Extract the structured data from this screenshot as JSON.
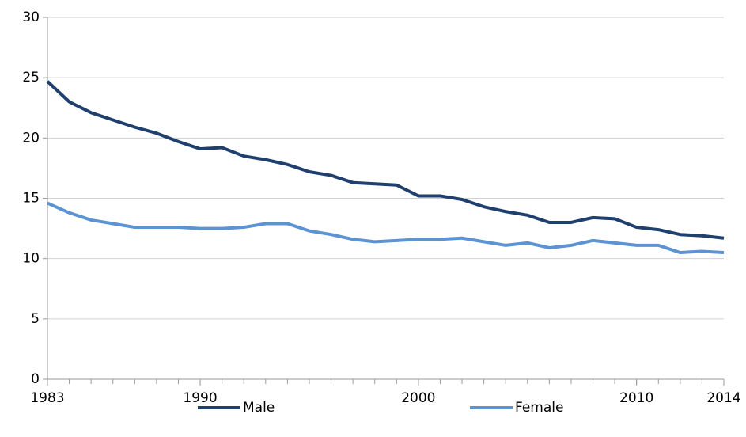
{
  "chart_data": {
    "type": "line",
    "x": [
      1983,
      1984,
      1985,
      1986,
      1987,
      1988,
      1989,
      1990,
      1991,
      1992,
      1993,
      1994,
      1995,
      1996,
      1997,
      1998,
      1999,
      2000,
      2001,
      2002,
      2003,
      2004,
      2005,
      2006,
      2007,
      2008,
      2009,
      2010,
      2011,
      2012,
      2013,
      2014
    ],
    "series": [
      {
        "name": "Male",
        "color": "#1f3f6e",
        "values": [
          24.7,
          23.0,
          22.1,
          21.5,
          20.9,
          20.4,
          19.7,
          19.1,
          19.2,
          18.5,
          18.2,
          17.8,
          17.2,
          16.9,
          16.3,
          16.2,
          16.1,
          15.2,
          15.2,
          14.9,
          14.3,
          13.9,
          13.6,
          13.0,
          13.0,
          13.4,
          13.3,
          12.6,
          12.4,
          12.0,
          11.9,
          11.7
        ]
      },
      {
        "name": "Female",
        "color": "#5b93d3",
        "values": [
          14.6,
          13.8,
          13.2,
          12.9,
          12.6,
          12.6,
          12.6,
          12.5,
          12.5,
          12.6,
          12.9,
          12.9,
          12.3,
          12.0,
          11.6,
          11.4,
          11.5,
          11.6,
          11.6,
          11.7,
          11.4,
          11.1,
          11.3,
          10.9,
          11.1,
          11.5,
          11.3,
          11.1,
          11.1,
          10.5,
          10.6,
          10.5
        ]
      }
    ],
    "xlim": [
      1983,
      2014
    ],
    "xticks": [
      1983,
      1990,
      2000,
      2010,
      2014
    ],
    "ylim": [
      0,
      30
    ],
    "yticks": [
      0,
      5,
      10,
      15,
      20,
      25,
      30
    ],
    "grid": true,
    "legend": "bottom"
  }
}
